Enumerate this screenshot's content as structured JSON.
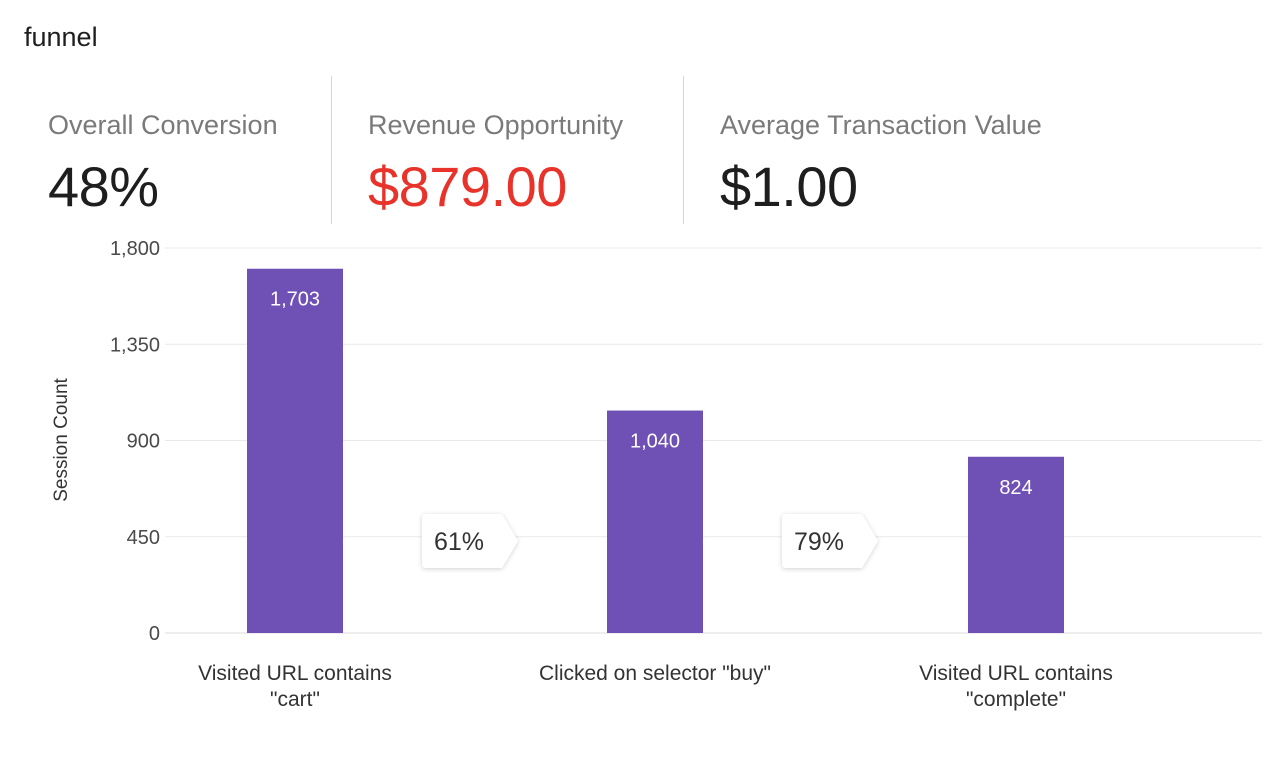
{
  "page": {
    "title": "funnel"
  },
  "metrics": [
    {
      "label": "Overall Conversion",
      "value": "48%",
      "color": "#1e1e1e"
    },
    {
      "label": "Revenue Opportunity",
      "value": "$879.00",
      "color": "#e8332a"
    },
    {
      "label": "Average Transaction Value",
      "value": "$1.00",
      "color": "#1e1e1e"
    }
  ],
  "chart_data": {
    "type": "bar",
    "title": "",
    "xlabel": "",
    "ylabel": "Session Count",
    "categories": [
      [
        "Visited URL contains",
        "\"cart\""
      ],
      [
        "Clicked on selector  \"buy\""
      ],
      [
        "Visited URL contains",
        "\"complete\""
      ]
    ],
    "values": [
      1703,
      1040,
      824
    ],
    "value_labels": [
      "1,703",
      "1,040",
      "824"
    ],
    "conversion_labels": [
      "61%",
      "79%"
    ],
    "ylim": [
      0,
      1800
    ],
    "yticks": [
      0,
      450,
      900,
      1350,
      1800
    ],
    "ytick_labels": [
      "0",
      "450",
      "900",
      "1,350",
      "1,800"
    ],
    "grid": true,
    "legend": "none",
    "bar_color": "#6f50b5"
  }
}
